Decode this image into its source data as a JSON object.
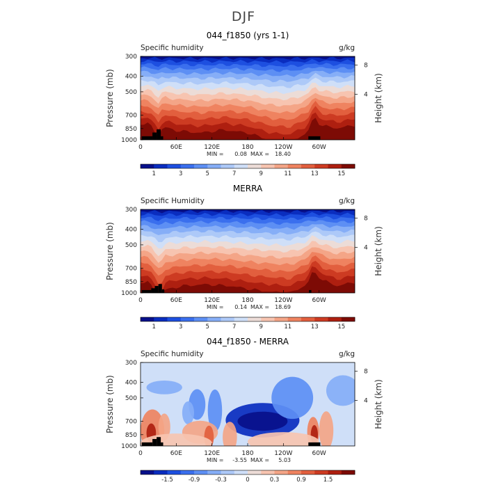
{
  "figure_title": "DJF",
  "chart_data": [
    {
      "type": "heatmap",
      "title": "044_f1850 (yrs 1-1)",
      "variable_label": "Specific humidity",
      "units": "g/kg",
      "ylabel": "Pressure (mb)",
      "y2label": "Height (km)",
      "y_ticks": [
        "300",
        "400",
        "500",
        "700",
        "850",
        "1000"
      ],
      "y2_ticks": [
        "8",
        "4"
      ],
      "x_ticks": [
        "0",
        "60E",
        "120E",
        "180",
        "120W",
        "60W"
      ],
      "min_label": "MIN =",
      "min_value": "0.08",
      "max_label": "MAX =",
      "max_value": "18.40",
      "colorbar_labels": [
        "1",
        "3",
        "5",
        "7",
        "9",
        "11",
        "13",
        "15"
      ],
      "colorbar_colors": [
        "#08108a",
        "#0a2dbf",
        "#1d4fe0",
        "#3a6fee",
        "#5d8ff4",
        "#86aef7",
        "#adc9f8",
        "#cfdff8",
        "#ecdcd7",
        "#f7c4b0",
        "#f4a587",
        "#ef8360",
        "#e25f3e",
        "#cd3b22",
        "#ae1f10",
        "#7d0b05"
      ],
      "field_range": [
        0.08,
        18.4
      ],
      "field_profile": [
        {
          "x": 0,
          "d": 0.38
        },
        {
          "x": 15,
          "d": 0.38
        },
        {
          "x": 30,
          "d": 0.55
        },
        {
          "x": 38,
          "d": 0.42
        },
        {
          "x": 60,
          "d": 0.47
        },
        {
          "x": 100,
          "d": 0.5
        },
        {
          "x": 140,
          "d": 0.46
        },
        {
          "x": 180,
          "d": 0.5
        },
        {
          "x": 220,
          "d": 0.6
        },
        {
          "x": 250,
          "d": 0.62
        },
        {
          "x": 280,
          "d": 0.5
        },
        {
          "x": 292,
          "d": 0.28
        },
        {
          "x": 302,
          "d": 0.4
        },
        {
          "x": 330,
          "d": 0.44
        },
        {
          "x": 360,
          "d": 0.4
        }
      ],
      "topography": [
        {
          "lon": 2,
          "to": 20,
          "p": 950
        },
        {
          "lon": 20,
          "to": 27,
          "p": 900
        },
        {
          "lon": 27,
          "to": 34,
          "p": 860
        },
        {
          "lon": 34,
          "to": 38,
          "p": 950
        },
        {
          "lon": 282,
          "to": 302,
          "p": 950
        }
      ]
    },
    {
      "type": "heatmap",
      "title": "MERRA",
      "variable_label": "Specific Humidity",
      "units": "g/kg",
      "ylabel": "Pressure (mb)",
      "y2label": "Height (km)",
      "y_ticks": [
        "300",
        "400",
        "500",
        "700",
        "850",
        "1000"
      ],
      "y2_ticks": [
        "8",
        "4"
      ],
      "x_ticks": [
        "0",
        "60E",
        "120E",
        "180",
        "120W",
        "60W"
      ],
      "min_label": "MIN =",
      "min_value": "0.14",
      "max_label": "MAX =",
      "max_value": "18.69",
      "colorbar_labels": [
        "1",
        "3",
        "5",
        "7",
        "9",
        "11",
        "13",
        "15"
      ],
      "colorbar_colors": [
        "#08108a",
        "#0a2dbf",
        "#1d4fe0",
        "#3a6fee",
        "#5d8ff4",
        "#86aef7",
        "#adc9f8",
        "#cfdff8",
        "#ecdcd7",
        "#f7c4b0",
        "#f4a587",
        "#ef8360",
        "#e25f3e",
        "#cd3b22",
        "#ae1f10",
        "#7d0b05"
      ],
      "field_range": [
        0.14,
        18.69
      ],
      "field_profile": [
        {
          "x": 0,
          "d": 0.45
        },
        {
          "x": 15,
          "d": 0.45
        },
        {
          "x": 32,
          "d": 0.72
        },
        {
          "x": 42,
          "d": 0.55
        },
        {
          "x": 70,
          "d": 0.5
        },
        {
          "x": 110,
          "d": 0.48
        },
        {
          "x": 150,
          "d": 0.5
        },
        {
          "x": 200,
          "d": 0.56
        },
        {
          "x": 250,
          "d": 0.6
        },
        {
          "x": 280,
          "d": 0.48
        },
        {
          "x": 290,
          "d": 0.3
        },
        {
          "x": 305,
          "d": 0.42
        },
        {
          "x": 330,
          "d": 0.5
        },
        {
          "x": 360,
          "d": 0.45
        }
      ],
      "topography": [
        {
          "lon": 2,
          "to": 18,
          "p": 960
        },
        {
          "lon": 18,
          "to": 24,
          "p": 935
        },
        {
          "lon": 24,
          "to": 30,
          "p": 905
        },
        {
          "lon": 30,
          "to": 36,
          "p": 880
        },
        {
          "lon": 36,
          "to": 40,
          "p": 950
        },
        {
          "lon": 283,
          "to": 287,
          "p": 960
        }
      ]
    },
    {
      "type": "heatmap",
      "title": "044_f1850 - MERRA",
      "variable_label": "Specific humidity",
      "units": "g/kg",
      "ylabel": "Pressure (mb)",
      "y2label": "Height (km)",
      "y_ticks": [
        "300",
        "400",
        "500",
        "700",
        "850",
        "1000"
      ],
      "y2_ticks": [
        "8",
        "4"
      ],
      "x_ticks": [
        "0",
        "60E",
        "120E",
        "180",
        "120W",
        "60W"
      ],
      "min_label": "MIN =",
      "min_value": "-3.55",
      "max_label": "MAX =",
      "max_value": "5.03",
      "colorbar_labels": [
        "-1.5",
        "-0.9",
        "-0.3",
        "0",
        "0.3",
        "0.9",
        "1.5"
      ],
      "colorbar_colors": [
        "#08108a",
        "#0a2dbf",
        "#1d4fe0",
        "#3a6fee",
        "#5d8ff4",
        "#86aef7",
        "#adc9f8",
        "#cfdff8",
        "#ecdcd7",
        "#f7c4b0",
        "#f4a587",
        "#ef8360",
        "#e25f3e",
        "#cd3b22",
        "#ae1f10",
        "#7d0b05"
      ],
      "field_range": [
        -3.55,
        5.03
      ],
      "field_profile": [],
      "topography": [
        {
          "lon": 2,
          "to": 20,
          "p": 950
        },
        {
          "lon": 20,
          "to": 27,
          "p": 905
        },
        {
          "lon": 27,
          "to": 34,
          "p": 880
        },
        {
          "lon": 34,
          "to": 38,
          "p": 950
        },
        {
          "lon": 282,
          "to": 302,
          "p": 950
        }
      ]
    }
  ]
}
